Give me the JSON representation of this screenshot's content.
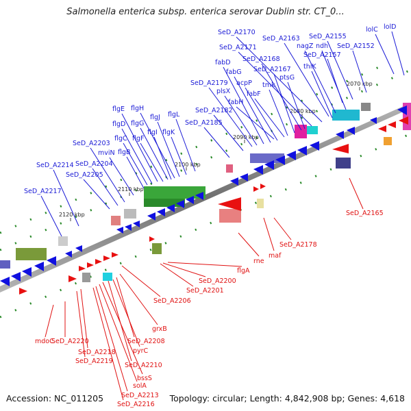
{
  "title": "Salmonella enterica subsp. enterica serovar Dublin str. CT_0...",
  "accession": "Accession: NC_011205",
  "summary": "Topology: circular; Length: 4,842,908 bp; Genes: 4,618",
  "ticks": [
    "2070 kbp",
    "2080 kbp",
    "2090 kbp",
    "2100 kbp",
    "2110 kbp",
    "2120 kbp"
  ],
  "forward_labels": [
    "lolD",
    "lolC",
    "SeD_A2152",
    "SeD_A2155",
    "SeD_A2157",
    "ndh",
    "nagZ",
    "SeD_A2163",
    "thiK",
    "SeD_A2170",
    "SeD_A2171",
    "SeD_A2168",
    "SeD_A2167",
    "ptsG",
    "fabD",
    "fabG",
    "acpP",
    "tmk",
    "fabF",
    "fabH",
    "SeD_A2179",
    "plsX",
    "SeD_A2182",
    "SeD_A2185",
    "flgE",
    "flgH",
    "flgD",
    "flgG",
    "flgJ",
    "flgL",
    "flgC",
    "flgF",
    "flgI",
    "flgK",
    "flgB",
    "mviN",
    "SeD_A2203",
    "SeD_A2204",
    "SeD_A2205",
    "SeD_A2214",
    "SeD_A2217"
  ],
  "reverse_labels": [
    "SeD_A2165",
    "SeD_A2178",
    "maf",
    "rne",
    "flgA",
    "SeD_A2200",
    "SeD_A2201",
    "SeD_A2206",
    "grxB",
    "SeD_A2208",
    "pyrC",
    "SeD_A2210",
    "bssS",
    "solA",
    "SeD_A2213",
    "SeD_A2216",
    "SeD_A2218",
    "SeD_A2219",
    "SeD_A2220",
    "mdoC"
  ],
  "colors": {
    "forward_label": "#1a1ad6",
    "reverse_label": "#e01010",
    "forward_gene": "#1010e0",
    "reverse_gene": "#e81010",
    "backbone": "#8c8c8c",
    "tick": "#1a7a1a"
  }
}
